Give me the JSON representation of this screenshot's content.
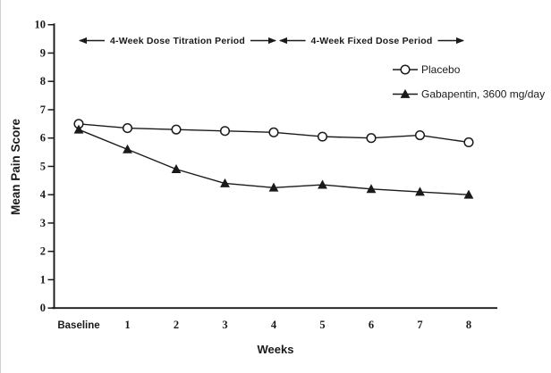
{
  "chart_data": {
    "type": "line",
    "title": "",
    "xlabel": "Weeks",
    "ylabel": "Mean Pain Score",
    "x_categories": [
      "Baseline",
      "1",
      "2",
      "3",
      "4",
      "5",
      "6",
      "7",
      "8"
    ],
    "y_ticks": [
      "0",
      "1",
      "2",
      "3",
      "4",
      "5",
      "6",
      "7",
      "8",
      "9",
      "10"
    ],
    "ylim": [
      0,
      10
    ],
    "grid": false,
    "legend_position": "upper-right",
    "series": [
      {
        "name": "Placebo",
        "marker": "open-circle",
        "values": [
          6.5,
          6.35,
          6.3,
          6.25,
          6.2,
          6.05,
          6.0,
          6.1,
          5.85
        ]
      },
      {
        "name": "Gabapentin, 3600 mg/day",
        "marker": "filled-triangle",
        "values": [
          6.3,
          5.6,
          4.9,
          4.4,
          4.25,
          4.35,
          4.2,
          4.1,
          4.0
        ]
      }
    ],
    "annotations": [
      {
        "label": "4-Week Dose Titration Period",
        "from_week_index": 0,
        "to_week_index": 4
      },
      {
        "label": "4-Week Fixed Dose Period",
        "from_week_index": 4,
        "to_week_index": 8
      }
    ]
  },
  "colors": {
    "ink": "#1a1a1a",
    "background": "#ffffff"
  }
}
